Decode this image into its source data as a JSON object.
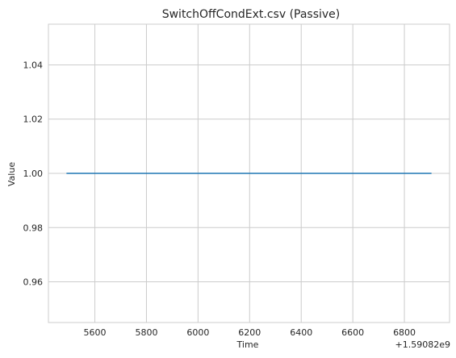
{
  "chart_data": {
    "type": "line",
    "title": "SwitchOffCondExt.csv (Passive)",
    "xlabel": "Time",
    "ylabel": "Value",
    "x_offset_label": "+1.59082e9",
    "x_ticks": [
      5600,
      5800,
      6000,
      6200,
      6400,
      6600,
      6800
    ],
    "y_ticks": [
      0.96,
      0.98,
      1.0,
      1.02,
      1.04
    ],
    "y_tick_labels": [
      "0.96",
      "0.98",
      "1.00",
      "1.02",
      "1.04"
    ],
    "xlim": [
      5420,
      6975
    ],
    "ylim": [
      0.945,
      1.055
    ],
    "grid": true,
    "series": [
      {
        "x": [
          5490,
          6905
        ],
        "y": [
          1.0,
          1.0
        ],
        "color": "#1f77b4"
      }
    ]
  }
}
